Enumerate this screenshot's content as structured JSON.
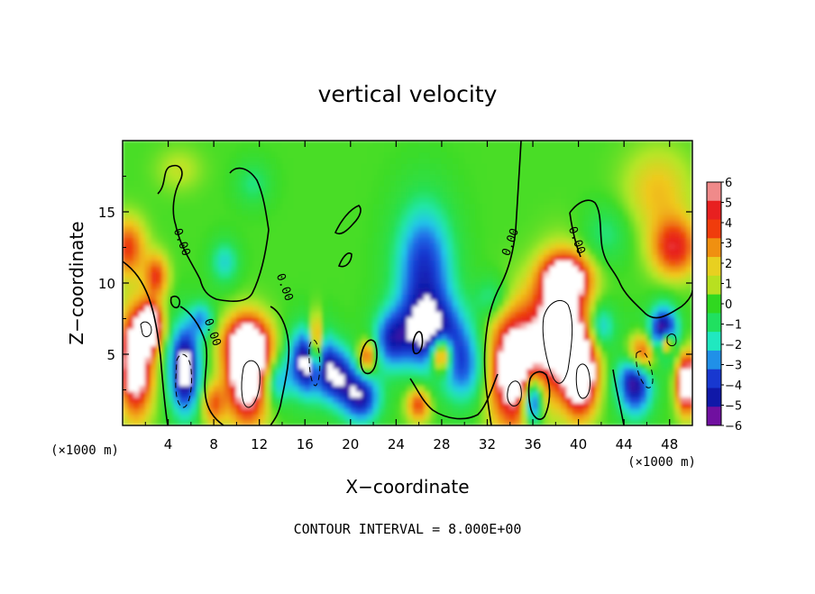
{
  "chart_data": {
    "type": "heatmap",
    "title": "vertical velocity",
    "xlabel": "X−coordinate",
    "ylabel": "Z−coordinate",
    "x_unit": "(×1000 m)",
    "z_unit": "(×1000 m)",
    "footer": "CONTOUR INTERVAL = 8.000E+00",
    "contour_label": "0.00",
    "xlim": [
      0,
      50
    ],
    "ylim": [
      0,
      20
    ],
    "x_ticks": [
      4,
      8,
      12,
      16,
      20,
      24,
      28,
      32,
      36,
      40,
      44,
      48
    ],
    "y_ticks": [
      5,
      10,
      15
    ],
    "colorbar": {
      "ticks": [
        6,
        5,
        4,
        3,
        2,
        1,
        0,
        -1,
        -2,
        -3,
        -4,
        -5,
        -6
      ],
      "tick_labels": [
        "6",
        "5",
        "4",
        "3",
        "2",
        "1",
        "0",
        "−1",
        "−2",
        "−3",
        "−4",
        "−5",
        "−6"
      ],
      "colors": [
        "#f08a8a",
        "#e82020",
        "#f03c0c",
        "#f09010",
        "#e8d020",
        "#b8e020",
        "#30d820",
        "#20e060",
        "#20e8c0",
        "#2090e8",
        "#1838d0",
        "#1018a8",
        "#7010a0"
      ]
    },
    "field": {
      "background": 0.6,
      "blobs": [
        {
          "x": 1.2,
          "z": 4.5,
          "rx": 1.4,
          "rz": 3.5,
          "v": 6.0
        },
        {
          "x": 2.5,
          "z": 7.0,
          "rx": 1.0,
          "rz": 1.5,
          "v": 6.0
        },
        {
          "x": 0.5,
          "z": 12.5,
          "rx": 1.5,
          "rz": 2.0,
          "v": 3.0
        },
        {
          "x": 3.0,
          "z": 10.5,
          "rx": 1.0,
          "rz": 1.5,
          "v": 3.0
        },
        {
          "x": 5.5,
          "z": 4.0,
          "rx": 1.3,
          "rz": 3.0,
          "v": -6.0
        },
        {
          "x": 7.0,
          "z": 7.5,
          "rx": 1.0,
          "rz": 1.2,
          "v": -2.5
        },
        {
          "x": 11.0,
          "z": 3.5,
          "rx": 1.8,
          "rz": 3.2,
          "v": 6.0
        },
        {
          "x": 11.0,
          "z": 5.8,
          "rx": 2.0,
          "rz": 1.8,
          "v": 4.0
        },
        {
          "x": 8.0,
          "z": 1.5,
          "rx": 1.0,
          "rz": 1.5,
          "v": 2.5
        },
        {
          "x": 9.0,
          "z": 11.5,
          "rx": 1.2,
          "rz": 1.5,
          "v": -2.0
        },
        {
          "x": 11.5,
          "z": 17.0,
          "rx": 1.5,
          "rz": 1.5,
          "v": -1.2
        },
        {
          "x": 13.5,
          "z": 3.0,
          "rx": 1.2,
          "rz": 1.5,
          "v": -2.5
        },
        {
          "x": 16.5,
          "z": 4.5,
          "rx": 1.8,
          "rz": 2.3,
          "v": -6.0
        },
        {
          "x": 17.0,
          "z": 5.5,
          "rx": 0.6,
          "rz": 2.0,
          "v": 6.0
        },
        {
          "x": 19.0,
          "z": 3.5,
          "rx": 1.5,
          "rz": 2.0,
          "v": -4.0
        },
        {
          "x": 21.0,
          "z": 2.0,
          "rx": 1.6,
          "rz": 1.8,
          "v": -4.5
        },
        {
          "x": 21.5,
          "z": 4.8,
          "rx": 0.8,
          "rz": 1.2,
          "v": 3.5
        },
        {
          "x": 23.5,
          "z": 6.0,
          "rx": 1.5,
          "rz": 2.0,
          "v": -3.0
        },
        {
          "x": 26.5,
          "z": 11.0,
          "rx": 2.5,
          "rz": 4.5,
          "v": -4.0
        },
        {
          "x": 27.0,
          "z": 6.5,
          "rx": 3.0,
          "rz": 2.5,
          "v": -4.5
        },
        {
          "x": 28.0,
          "z": 5.0,
          "rx": 0.9,
          "rz": 1.3,
          "v": 6.0
        },
        {
          "x": 30.0,
          "z": 4.0,
          "rx": 2.0,
          "rz": 2.5,
          "v": -3.0
        },
        {
          "x": 26.0,
          "z": 1.5,
          "rx": 1.0,
          "rz": 1.2,
          "v": 3.0
        },
        {
          "x": 34.5,
          "z": 4.0,
          "rx": 2.3,
          "rz": 4.0,
          "v": 6.0
        },
        {
          "x": 36.0,
          "z": 1.8,
          "rx": 0.9,
          "rz": 1.8,
          "v": -6.0
        },
        {
          "x": 38.5,
          "z": 7.0,
          "rx": 2.3,
          "rz": 4.0,
          "v": 6.0
        },
        {
          "x": 40.2,
          "z": 3.5,
          "rx": 1.4,
          "rz": 2.6,
          "v": 6.0
        },
        {
          "x": 39.0,
          "z": 10.5,
          "rx": 2.0,
          "rz": 1.5,
          "v": 4.0
        },
        {
          "x": 42.0,
          "z": 7.0,
          "rx": 1.2,
          "rz": 1.5,
          "v": -2.5
        },
        {
          "x": 45.0,
          "z": 3.5,
          "rx": 1.5,
          "rz": 2.5,
          "v": -6.0
        },
        {
          "x": 45.5,
          "z": 5.0,
          "rx": 1.5,
          "rz": 1.5,
          "v": 6.0
        },
        {
          "x": 47.5,
          "z": 6.5,
          "rx": 1.2,
          "rz": 1.8,
          "v": -6.0
        },
        {
          "x": 47.8,
          "z": 5.8,
          "rx": 0.6,
          "rz": 0.8,
          "v": 6.0
        },
        {
          "x": 49.5,
          "z": 3.0,
          "rx": 0.8,
          "rz": 2.0,
          "v": 6.0
        },
        {
          "x": 48.5,
          "z": 12.5,
          "rx": 2.0,
          "rz": 2.0,
          "v": 3.5
        },
        {
          "x": 47.0,
          "z": 16.5,
          "rx": 3.0,
          "rz": 3.0,
          "v": 1.5
        },
        {
          "x": 42.5,
          "z": 13.5,
          "rx": 2.0,
          "rz": 2.0,
          "v": -1.2
        },
        {
          "x": 5.0,
          "z": 18.0,
          "rx": 2.0,
          "rz": 1.5,
          "v": 0.8
        },
        {
          "x": 32.5,
          "z": 9.0,
          "rx": 1.5,
          "rz": 1.5,
          "v": -1.5
        }
      ]
    }
  }
}
